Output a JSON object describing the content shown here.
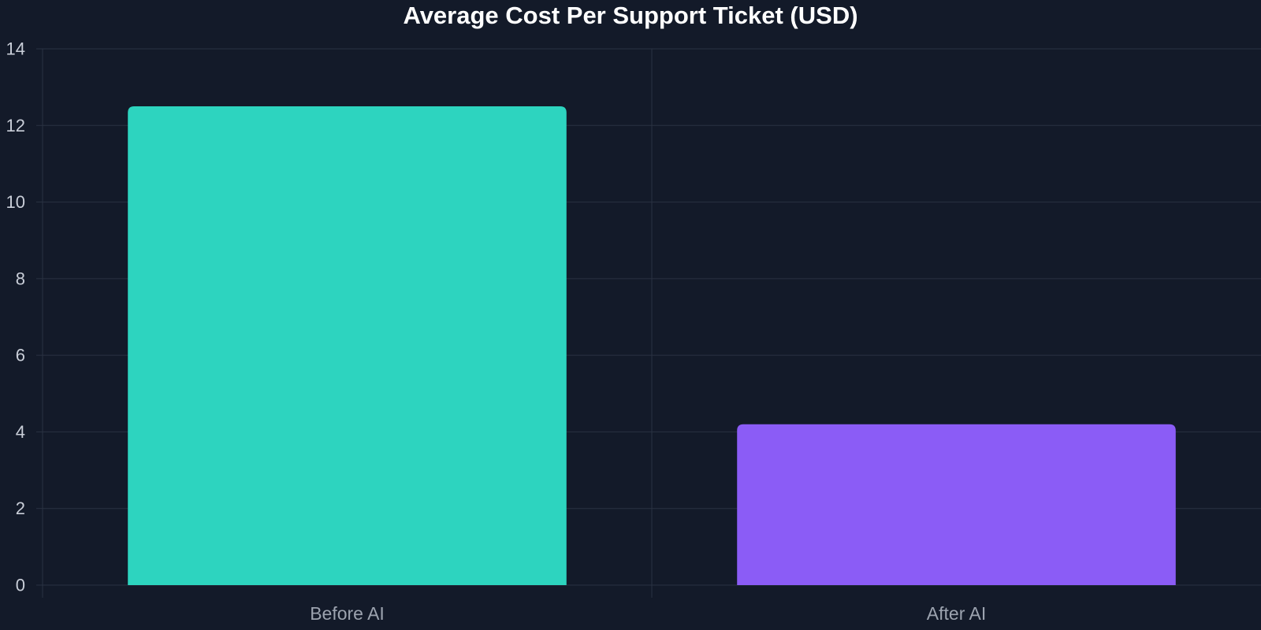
{
  "chart_data": {
    "type": "bar",
    "title": "Average Cost Per Support Ticket (USD)",
    "xlabel": "",
    "ylabel": "",
    "categories": [
      "Before AI",
      "After AI"
    ],
    "values": [
      12.5,
      4.2
    ],
    "colors": [
      "#2dd4bf",
      "#8b5cf6"
    ],
    "ylim": [
      0,
      14
    ],
    "yticks": [
      0,
      2,
      4,
      6,
      8,
      10,
      12,
      14
    ],
    "grid": true,
    "legend": "none"
  },
  "theme": {
    "background": "#131a29",
    "grid_color": "#2a3242",
    "title_color": "#ffffff"
  }
}
